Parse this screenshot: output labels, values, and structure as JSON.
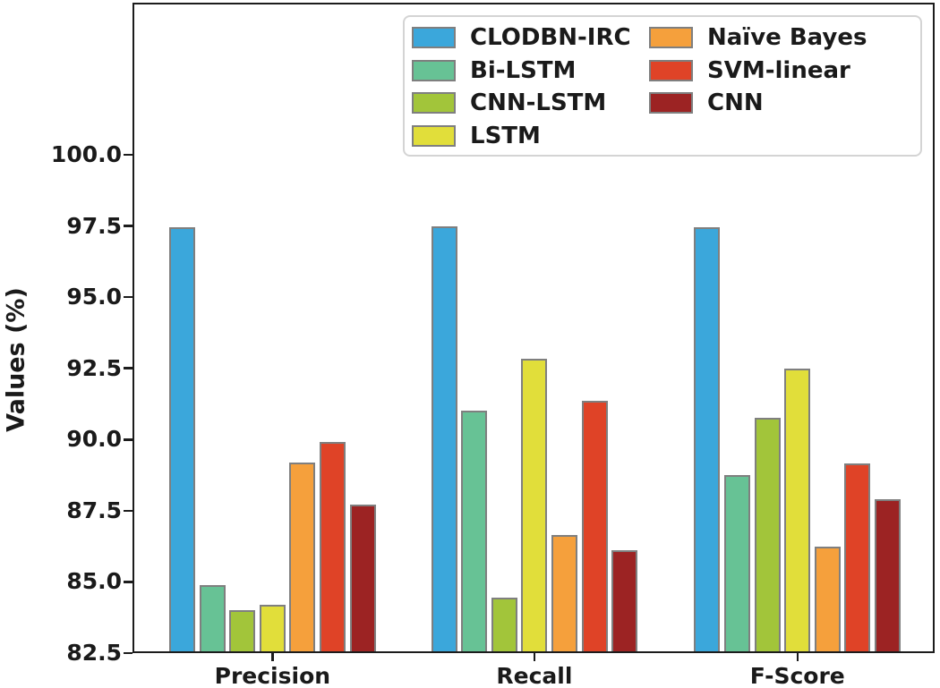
{
  "chart_data": {
    "type": "bar",
    "title": "",
    "xlabel": "",
    "ylabel": "Values (%)",
    "categories": [
      "Precision",
      "Recall",
      "F-Score"
    ],
    "series": [
      {
        "name": "CLODBN-IRC",
        "color": "#3BA7DB",
        "values": [
          97.45,
          97.5,
          97.45
        ]
      },
      {
        "name": "Bi-LSTM",
        "color": "#67C295",
        "values": [
          84.9,
          91.0,
          88.75
        ]
      },
      {
        "name": "CNN-LSTM",
        "color": "#A2C53A",
        "values": [
          84.0,
          84.45,
          90.75
        ]
      },
      {
        "name": "LSTM",
        "color": "#E1DE3A",
        "values": [
          84.2,
          92.85,
          92.5
        ]
      },
      {
        "name": "Naïve Bayes",
        "color": "#F5A03C",
        "values": [
          89.2,
          86.65,
          86.25
        ]
      },
      {
        "name": "SVM-linear",
        "color": "#DF4327",
        "values": [
          89.9,
          91.35,
          89.15
        ]
      },
      {
        "name": "CNN",
        "color": "#9C2323",
        "values": [
          87.7,
          86.1,
          87.9
        ]
      }
    ],
    "yticks": [
      82.5,
      85.0,
      87.5,
      90.0,
      92.5,
      95.0,
      97.5,
      100.0
    ],
    "ytick_labels": [
      "82.5",
      "85.0",
      "87.5",
      "90.0",
      "92.5",
      "95.0",
      "97.5",
      "100.0"
    ],
    "ylim": [
      82.5,
      105.34
    ],
    "grid": false,
    "bar_edge_color": "#7f7f7f",
    "legend_position": "upper right, inside plot, two columns (4 + 3 entries)"
  }
}
